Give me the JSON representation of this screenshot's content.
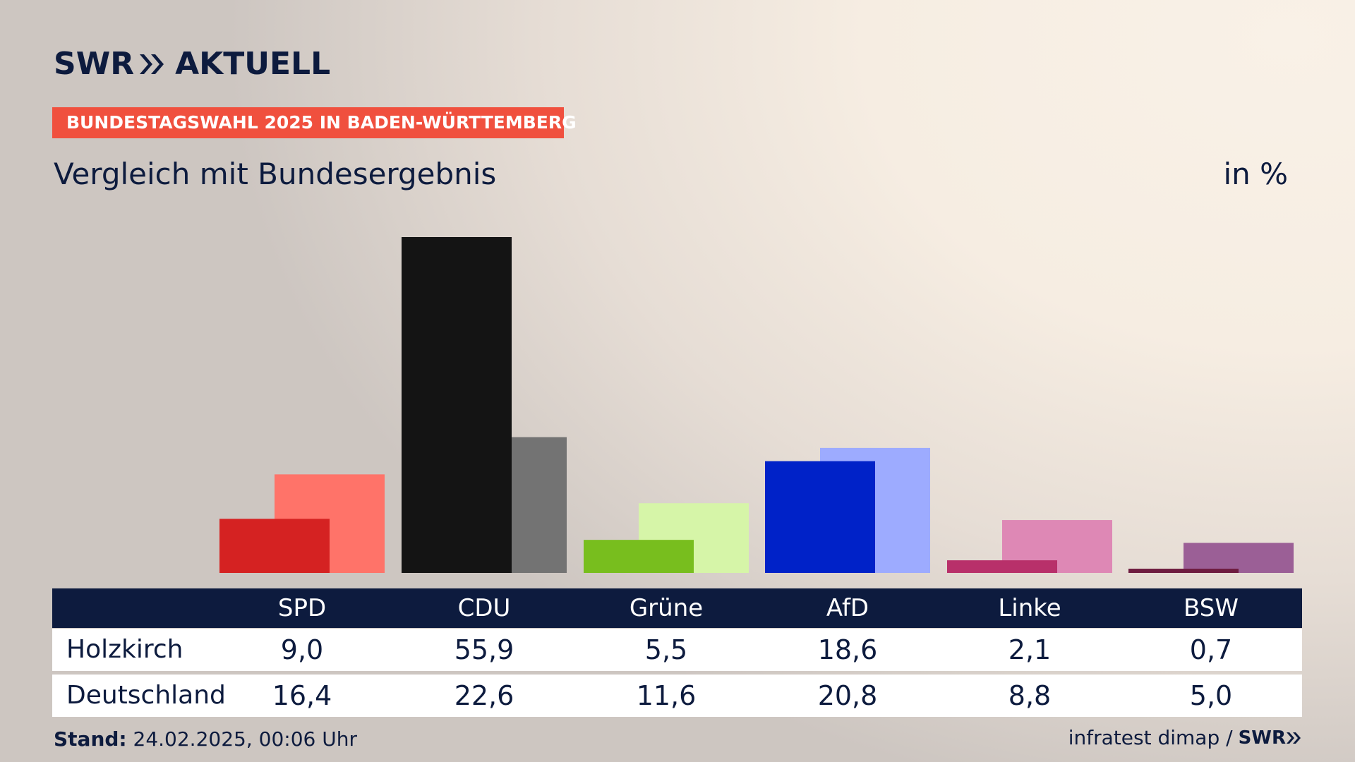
{
  "brand": {
    "logo_left": "SWR",
    "logo_right": "AKTUELL"
  },
  "kicker": "BUNDESTAGSWAHL 2025 IN BADEN-WÜRTTEMBERG",
  "subtitle": "Vergleich mit Bundesergebnis",
  "unit": "in %",
  "chart_data": {
    "type": "bar",
    "categories": [
      "SPD",
      "CDU",
      "Grüne",
      "AfD",
      "Linke",
      "BSW"
    ],
    "series": [
      {
        "name": "Holzkirch",
        "values": [
          9.0,
          55.9,
          5.5,
          18.6,
          2.1,
          0.7
        ]
      },
      {
        "name": "Deutschland",
        "values": [
          16.4,
          22.6,
          11.6,
          20.8,
          8.8,
          5.0
        ]
      }
    ],
    "ylim": [
      0,
      56
    ],
    "colors": {
      "local": [
        "#d52222",
        "#141414",
        "#78be1e",
        "#0022c8",
        "#b8306a",
        "#6e1c40"
      ],
      "national": [
        "#ff7369",
        "#737373",
        "#d6f5a8",
        "#9dabff",
        "#de88b5",
        "#9b5f96"
      ]
    }
  },
  "table": {
    "headers": [
      "SPD",
      "CDU",
      "Grüne",
      "AfD",
      "Linke",
      "BSW"
    ],
    "rows": [
      {
        "label": "Holzkirch",
        "values": [
          "9,0",
          "55,9",
          "5,5",
          "18,6",
          "2,1",
          "0,7"
        ]
      },
      {
        "label": "Deutschland",
        "values": [
          "16,4",
          "22,6",
          "11,6",
          "20,8",
          "8,8",
          "5,0"
        ]
      }
    ]
  },
  "footer": {
    "stand_label": "Stand:",
    "stand_value": " 24.02.2025, 00:06 Uhr",
    "source": "infratest dimap /",
    "source_brand": "SWR"
  }
}
